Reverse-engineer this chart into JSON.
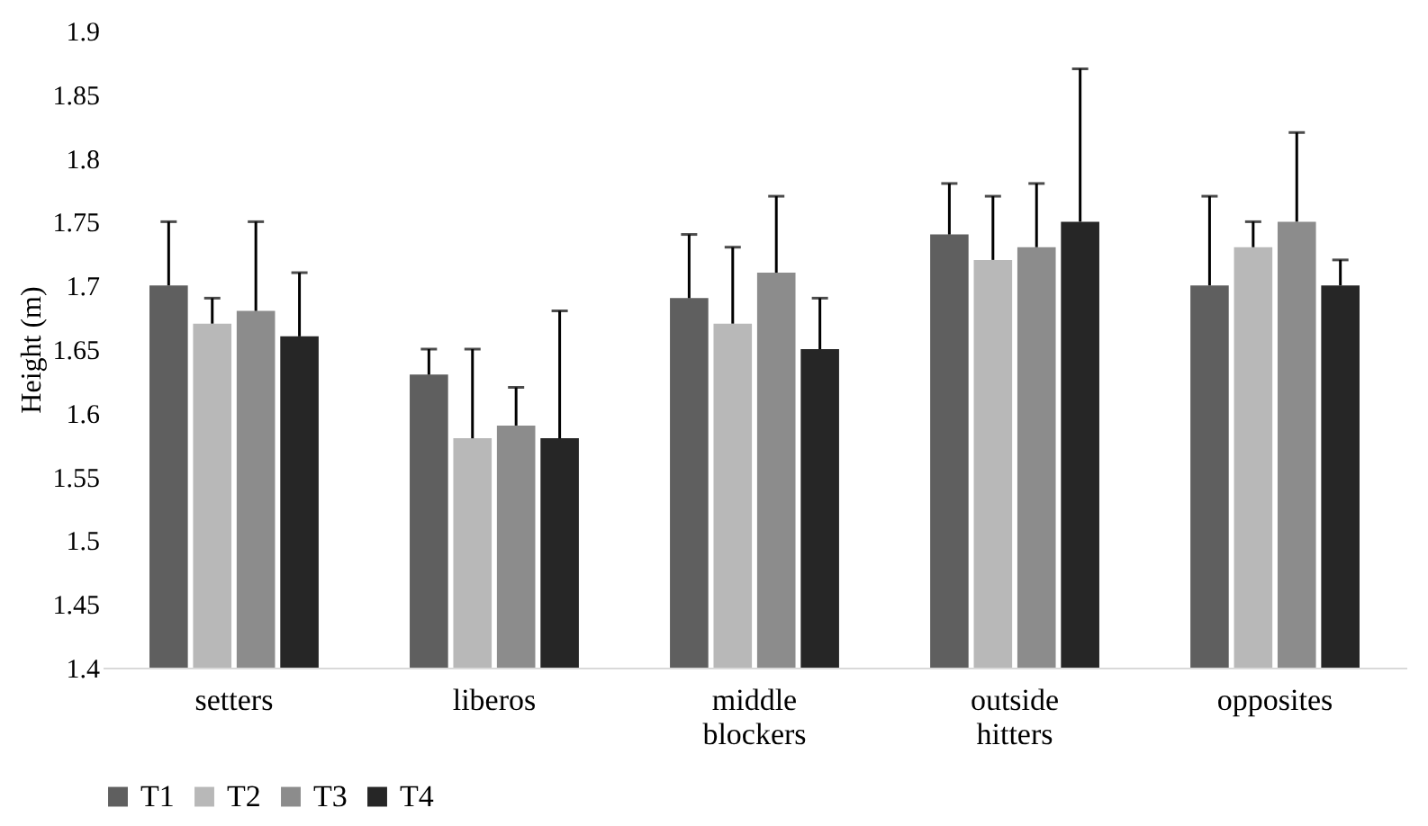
{
  "chart_data": {
    "type": "bar",
    "ylabel": "Height (m)",
    "categories": [
      "setters",
      "liberos",
      "middle blockers",
      "outside hitters",
      "opposites"
    ],
    "series": [
      {
        "name": "T1",
        "color": "#5f5f5f",
        "values": [
          1.7,
          1.63,
          1.69,
          1.74,
          1.7
        ],
        "errors": [
          [
            1.7,
            1.75
          ],
          [
            1.63,
            1.65
          ],
          [
            1.69,
            1.74
          ],
          [
            1.74,
            1.78
          ],
          [
            1.7,
            1.77
          ]
        ]
      },
      {
        "name": "T2",
        "color": "#b8b8b8",
        "values": [
          1.67,
          1.58,
          1.67,
          1.72,
          1.73
        ],
        "errors": [
          [
            1.67,
            1.69
          ],
          [
            1.58,
            1.65
          ],
          [
            1.67,
            1.73
          ],
          [
            1.72,
            1.77
          ],
          [
            1.73,
            1.75
          ]
        ]
      },
      {
        "name": "T3",
        "color": "#8c8c8c",
        "values": [
          1.68,
          1.59,
          1.71,
          1.73,
          1.75
        ],
        "errors": [
          [
            1.68,
            1.75
          ],
          [
            1.59,
            1.62
          ],
          [
            1.71,
            1.77
          ],
          [
            1.73,
            1.78
          ],
          [
            1.75,
            1.82
          ]
        ]
      },
      {
        "name": "T4",
        "color": "#262626",
        "values": [
          1.66,
          1.58,
          1.65,
          1.75,
          1.7
        ],
        "errors": [
          [
            1.66,
            1.71
          ],
          [
            1.58,
            1.68
          ],
          [
            1.65,
            1.69
          ],
          [
            1.75,
            1.87
          ],
          [
            1.7,
            1.72
          ]
        ]
      }
    ],
    "ylim": [
      1.4,
      1.9
    ],
    "yticks": [
      1.4,
      1.45,
      1.5,
      1.55,
      1.6,
      1.65,
      1.7,
      1.75,
      1.8,
      1.85,
      1.9
    ],
    "grid": false,
    "legend": "bottom"
  }
}
